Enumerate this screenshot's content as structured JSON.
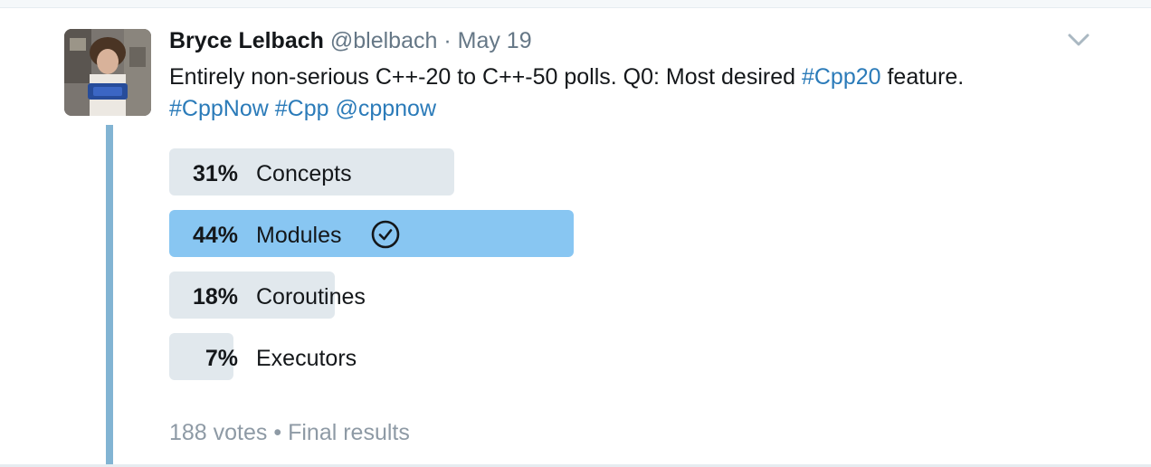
{
  "tweet": {
    "author_name": "Bryce Lelbach",
    "handle": "@blelbach",
    "separator": "·",
    "date": "May 19",
    "text_plain": "Entirely non-serious C++-20 to C++-50 polls. Q0: Most desired ",
    "hashtag_cpp20": "#Cpp20",
    "text_after": " feature.",
    "hashtag_cppnow": "#CppNow",
    "hashtag_cpp": "#Cpp",
    "mention_cppnow": "@cppnow"
  },
  "poll": {
    "options": [
      {
        "percent_label": "31%",
        "label": "Concepts",
        "percent": 31,
        "winner": false
      },
      {
        "percent_label": "44%",
        "label": "Modules",
        "percent": 44,
        "winner": true
      },
      {
        "percent_label": "18%",
        "label": "Coroutines",
        "percent": 18,
        "winner": false
      },
      {
        "percent_label": "7%",
        "label": "Executors",
        "percent": 7,
        "winner": false
      }
    ],
    "votes": "188 votes",
    "dot": "•",
    "status": "Final results"
  },
  "icons": {
    "menu": "chevron-down-icon",
    "winner": "check-circle-icon"
  },
  "colors": {
    "link": "#2b7bb9",
    "bar": "#e1e8ed",
    "winner_bar": "#88c6f2",
    "thread": "#82b4d3"
  }
}
